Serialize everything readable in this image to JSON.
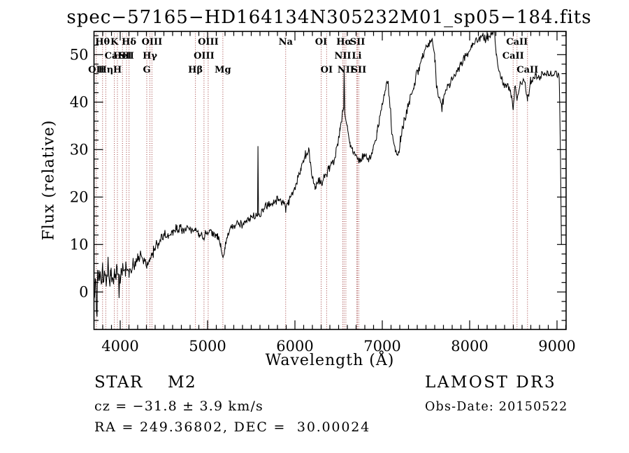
{
  "title": "spec−57165−HD164134N305232M01_sp05−184.fits",
  "annotations": {
    "class_label": "STAR    M2",
    "survey": "LAMOST DR3",
    "cz": "cz = −31.8 ± 3.9 km/s",
    "obs_date": "Obs-Date: 20150522",
    "radec": "RA = 249.36802, DEC =  30.00024"
  },
  "colors": {
    "background": "#ffffff",
    "spectrum": "#000000",
    "frame": "#000000",
    "line_marker": "#9e3a3a",
    "label_text": "#000000"
  },
  "chart_data": {
    "type": "line",
    "title": "spec−57165−HD164134N305232M01_sp05−184.fits",
    "xlabel": "Wavelength (Å)",
    "ylabel": "Flux (relative)",
    "xlim": [
      3700,
      9104
    ],
    "ylim": [
      -7.9,
      54.9
    ],
    "grid": false,
    "x_major_ticks": [
      4000,
      5000,
      6000,
      7000,
      8000,
      9000
    ],
    "x_minor_step": 100,
    "y_major_ticks": [
      0,
      10,
      20,
      30,
      40,
      50
    ],
    "y_minor_step": 2,
    "series_name": "flux-spectrum",
    "envelope_points": [
      [
        3700,
        2.0
      ],
      [
        3740,
        2.8
      ],
      [
        3790,
        3.2
      ],
      [
        3840,
        3.6
      ],
      [
        3890,
        4.0
      ],
      [
        3935,
        3.8
      ],
      [
        3968,
        4.2
      ],
      [
        4010,
        4.6
      ],
      [
        4060,
        4.8
      ],
      [
        4101,
        4.6
      ],
      [
        4150,
        5.8
      ],
      [
        4200,
        7.0
      ],
      [
        4240,
        7.4
      ],
      [
        4270,
        6.6
      ],
      [
        4304,
        5.6
      ],
      [
        4340,
        6.8
      ],
      [
        4380,
        8.5
      ],
      [
        4430,
        10.2
      ],
      [
        4470,
        11.4
      ],
      [
        4510,
        12.4
      ],
      [
        4550,
        11.6
      ],
      [
        4600,
        12.8
      ],
      [
        4650,
        13.4
      ],
      [
        4700,
        13.2
      ],
      [
        4750,
        13.0
      ],
      [
        4800,
        13.4
      ],
      [
        4861,
        12.8
      ],
      [
        4900,
        12.1
      ],
      [
        4950,
        11.6
      ],
      [
        5000,
        12.4
      ],
      [
        5060,
        12.6
      ],
      [
        5110,
        12.0
      ],
      [
        5150,
        9.5
      ],
      [
        5175,
        7.0
      ],
      [
        5200,
        9.5
      ],
      [
        5240,
        12.6
      ],
      [
        5290,
        13.8
      ],
      [
        5350,
        14.2
      ],
      [
        5420,
        14.6
      ],
      [
        5490,
        15.4
      ],
      [
        5555,
        15.9
      ],
      [
        5572,
        15.9
      ],
      [
        5577,
        30.8
      ],
      [
        5583,
        16.0
      ],
      [
        5640,
        17.4
      ],
      [
        5700,
        18.2
      ],
      [
        5760,
        19.0
      ],
      [
        5820,
        19.6
      ],
      [
        5860,
        19.0
      ],
      [
        5894,
        17.6
      ],
      [
        5925,
        18.8
      ],
      [
        5970,
        20.5
      ],
      [
        6020,
        23.0
      ],
      [
        6070,
        26.0
      ],
      [
        6120,
        28.8
      ],
      [
        6155,
        30.2
      ],
      [
        6190,
        25.0
      ],
      [
        6230,
        21.6
      ],
      [
        6265,
        23.2
      ],
      [
        6300,
        23.0
      ],
      [
        6340,
        24.6
      ],
      [
        6390,
        26.0
      ],
      [
        6440,
        27.4
      ],
      [
        6480,
        30.5
      ],
      [
        6515,
        34.0
      ],
      [
        6545,
        37.8
      ],
      [
        6558,
        38.8
      ],
      [
        6563,
        47.5
      ],
      [
        6570,
        37.5
      ],
      [
        6600,
        34.8
      ],
      [
        6630,
        31.8
      ],
      [
        6660,
        29.8
      ],
      [
        6700,
        28.6
      ],
      [
        6740,
        27.9
      ],
      [
        6790,
        28.6
      ],
      [
        6840,
        27.8
      ],
      [
        6890,
        29.8
      ],
      [
        6940,
        33.5
      ],
      [
        6990,
        38.5
      ],
      [
        7040,
        43.5
      ],
      [
        7065,
        44.3
      ],
      [
        7095,
        37.5
      ],
      [
        7120,
        32.0
      ],
      [
        7150,
        29.2
      ],
      [
        7175,
        28.6
      ],
      [
        7210,
        32.0
      ],
      [
        7260,
        36.8
      ],
      [
        7310,
        40.0
      ],
      [
        7360,
        43.2
      ],
      [
        7410,
        46.8
      ],
      [
        7460,
        49.6
      ],
      [
        7520,
        51.8
      ],
      [
        7565,
        53.2
      ],
      [
        7600,
        49.5
      ],
      [
        7625,
        43.0
      ],
      [
        7655,
        40.3
      ],
      [
        7690,
        39.6
      ],
      [
        7725,
        42.6
      ],
      [
        7770,
        43.8
      ],
      [
        7820,
        45.2
      ],
      [
        7870,
        46.8
      ],
      [
        7920,
        48.6
      ],
      [
        7970,
        50.2
      ],
      [
        8030,
        51.8
      ],
      [
        8090,
        53.2
      ],
      [
        8150,
        53.8
      ],
      [
        8210,
        53.4
      ],
      [
        8255,
        54.6
      ],
      [
        8280,
        55.4
      ],
      [
        8305,
        50.5
      ],
      [
        8335,
        46.8
      ],
      [
        8375,
        44.6
      ],
      [
        8420,
        43.6
      ],
      [
        8465,
        42.8
      ],
      [
        8498,
        38.6
      ],
      [
        8520,
        43.4
      ],
      [
        8542,
        40.6
      ],
      [
        8575,
        43.8
      ],
      [
        8620,
        44.4
      ],
      [
        8662,
        40.8
      ],
      [
        8700,
        44.4
      ],
      [
        8750,
        45.6
      ],
      [
        8800,
        44.8
      ],
      [
        8850,
        45.8
      ],
      [
        8905,
        46.2
      ],
      [
        8950,
        45.4
      ],
      [
        9000,
        46.0
      ],
      [
        9025,
        45.0
      ],
      [
        9040,
        28.0
      ],
      [
        9050,
        10.0
      ]
    ],
    "noise_segments": [
      [
        3700,
        3790,
        5.2
      ],
      [
        3790,
        3905,
        3.8
      ],
      [
        3905,
        4005,
        2.8
      ],
      [
        4005,
        4205,
        2.0
      ],
      [
        4205,
        4505,
        1.6
      ],
      [
        4505,
        5560,
        1.25
      ],
      [
        5560,
        5590,
        0.4
      ],
      [
        5590,
        6290,
        1.15
      ],
      [
        6290,
        6520,
        1.35
      ],
      [
        6520,
        6585,
        0.9
      ],
      [
        6585,
        7095,
        1.2
      ],
      [
        7095,
        7595,
        1.35
      ],
      [
        7595,
        7705,
        1.9
      ],
      [
        7705,
        8275,
        1.25
      ],
      [
        8275,
        8695,
        1.5
      ],
      [
        8695,
        9020,
        1.3
      ],
      [
        9020,
        9055,
        1.5
      ]
    ],
    "spectral_lines": [
      {
        "label": "Hθ",
        "wavelength": 3798,
        "row": 1
      },
      {
        "label": "K",
        "wavelength": 3933,
        "row": 1
      },
      {
        "label": "Hδ",
        "wavelength": 4101,
        "row": 1
      },
      {
        "label": "OIII",
        "wavelength": 4363,
        "row": 1
      },
      {
        "label": "OIII",
        "wavelength": 5007,
        "row": 1
      },
      {
        "label": "Na",
        "wavelength": 5894,
        "row": 1
      },
      {
        "label": "OI",
        "wavelength": 6300,
        "row": 1
      },
      {
        "label": "Hα",
        "wavelength": 6563,
        "row": 1
      },
      {
        "label": "SII",
        "wavelength": 6716,
        "row": 1
      },
      {
        "label": "CaII",
        "wavelength": 8542,
        "row": 1
      },
      {
        "label": "CaII",
        "wavelength": 3945,
        "row": 2,
        "line": false
      },
      {
        "label": "HeI",
        "wavelength": 4026,
        "row": 2
      },
      {
        "label": "SII",
        "wavelength": 4072,
        "row": 2
      },
      {
        "label": "Hγ",
        "wavelength": 4340,
        "row": 2
      },
      {
        "label": "OIII",
        "wavelength": 4959,
        "row": 2
      },
      {
        "label": "NII",
        "wavelength": 6548,
        "row": 2
      },
      {
        "label": "Li",
        "wavelength": 6707,
        "row": 2
      },
      {
        "label": "CaII",
        "wavelength": 8498,
        "row": 2
      },
      {
        "label": "OII",
        "wavelength": 3727,
        "row": 3
      },
      {
        "label": "Hη",
        "wavelength": 3835,
        "row": 3
      },
      {
        "label": "H",
        "wavelength": 3968,
        "row": 3
      },
      {
        "label": "G",
        "wavelength": 4304,
        "row": 3
      },
      {
        "label": "Hβ",
        "wavelength": 4861,
        "row": 3
      },
      {
        "label": "Mg",
        "wavelength": 5175,
        "row": 3
      },
      {
        "label": "OI",
        "wavelength": 6363,
        "row": 3
      },
      {
        "label": "NII",
        "wavelength": 6583,
        "row": 3
      },
      {
        "label": "SII",
        "wavelength": 6731,
        "row": 3
      },
      {
        "label": "CaII",
        "wavelength": 8662,
        "row": 3
      }
    ]
  }
}
